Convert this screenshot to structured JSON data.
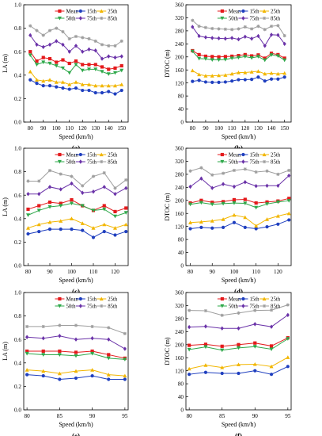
{
  "colors": {
    "Mean": "#e41a1c",
    "15th": "#1f3fbf",
    "25th": "#f2b600",
    "50th": "#2ea84a",
    "75th": "#6a32a8",
    "85th": "#9e9e9e"
  },
  "chart_data": [
    {
      "type": "line",
      "panel_label": "(a)",
      "xlabel": "Speed (km/h)",
      "ylabel": "LA (m)",
      "xlim": [
        75,
        155
      ],
      "ylim": [
        0.0,
        1.0
      ],
      "xticks": [
        80,
        90,
        100,
        110,
        120,
        130,
        140,
        150
      ],
      "yticks": [
        0.0,
        0.2,
        0.4,
        0.6,
        0.8,
        1.0
      ],
      "x": [
        80,
        85,
        90,
        95,
        100,
        105,
        110,
        115,
        120,
        125,
        130,
        135,
        140,
        145,
        150
      ],
      "series": [
        {
          "name": "Mean",
          "values": [
            0.6,
            0.52,
            0.55,
            0.54,
            0.51,
            0.53,
            0.5,
            0.52,
            0.49,
            0.49,
            0.49,
            0.47,
            0.45,
            0.46,
            0.48
          ]
        },
        {
          "name": "15th",
          "values": [
            0.36,
            0.33,
            0.31,
            0.31,
            0.3,
            0.29,
            0.28,
            0.29,
            0.27,
            0.27,
            0.25,
            0.25,
            0.26,
            0.24,
            0.27
          ]
        },
        {
          "name": "25th",
          "values": [
            0.43,
            0.36,
            0.35,
            0.36,
            0.34,
            0.34,
            0.32,
            0.34,
            0.32,
            0.32,
            0.31,
            0.31,
            0.31,
            0.31,
            0.32
          ]
        },
        {
          "name": "50th",
          "values": [
            0.57,
            0.49,
            0.51,
            0.5,
            0.48,
            0.46,
            0.42,
            0.49,
            0.44,
            0.45,
            0.45,
            0.43,
            0.41,
            0.42,
            0.44
          ]
        },
        {
          "name": "75th",
          "values": [
            0.74,
            0.66,
            0.64,
            0.66,
            0.69,
            0.66,
            0.6,
            0.65,
            0.6,
            0.62,
            0.61,
            0.54,
            0.56,
            0.55,
            0.56
          ]
        },
        {
          "name": "85th",
          "values": [
            0.82,
            0.78,
            0.74,
            0.78,
            0.8,
            0.77,
            0.71,
            0.73,
            0.72,
            0.71,
            0.69,
            0.66,
            0.65,
            0.65,
            0.69
          ]
        }
      ]
    },
    {
      "type": "line",
      "panel_label": "(b)",
      "xlabel": "Speed (km/h)",
      "ylabel": "DTOC (m)",
      "xlim": [
        75,
        155
      ],
      "ylim": [
        0,
        360
      ],
      "xticks": [
        80,
        90,
        100,
        110,
        120,
        130,
        140,
        150
      ],
      "yticks": [
        0,
        40,
        80,
        120,
        160,
        200,
        240,
        280,
        320,
        360
      ],
      "x": [
        80,
        85,
        90,
        95,
        100,
        105,
        110,
        115,
        120,
        125,
        130,
        135,
        140,
        145,
        150
      ],
      "series": [
        {
          "name": "Mean",
          "values": [
            219,
            207,
            202,
            201,
            200,
            201,
            202,
            204,
            207,
            203,
            206,
            196,
            211,
            207,
            196
          ]
        },
        {
          "name": "15th",
          "values": [
            125,
            128,
            123,
            122,
            122,
            123,
            126,
            130,
            130,
            131,
            138,
            126,
            132,
            132,
            138
          ]
        },
        {
          "name": "25th",
          "values": [
            158,
            146,
            142,
            142,
            143,
            144,
            148,
            152,
            152,
            154,
            156,
            148,
            150,
            148,
            150
          ]
        },
        {
          "name": "50th",
          "values": [
            217,
            195,
            194,
            191,
            191,
            192,
            196,
            198,
            201,
            197,
            201,
            190,
            206,
            203,
            190
          ]
        },
        {
          "name": "75th",
          "values": [
            292,
            264,
            260,
            258,
            257,
            256,
            258,
            254,
            262,
            256,
            264,
            234,
            268,
            267,
            240
          ]
        },
        {
          "name": "85th",
          "values": [
            312,
            294,
            290,
            287,
            286,
            285,
            284,
            286,
            292,
            286,
            294,
            284,
            294,
            296,
            265
          ]
        }
      ]
    },
    {
      "type": "line",
      "panel_label": "(c)",
      "xlabel": "Speed (km/h)",
      "ylabel": "LA (m)",
      "xlim": [
        78,
        126
      ],
      "ylim": [
        0.0,
        1.0
      ],
      "xticks": [
        80,
        90,
        100,
        110,
        120
      ],
      "yticks": [
        0.0,
        0.2,
        0.4,
        0.6,
        0.8,
        1.0
      ],
      "x": [
        80,
        85,
        90,
        95,
        100,
        105,
        110,
        115,
        120,
        125
      ],
      "series": [
        {
          "name": "Mean",
          "values": [
            0.48,
            0.51,
            0.54,
            0.53,
            0.56,
            0.51,
            0.47,
            0.51,
            0.46,
            0.49
          ]
        },
        {
          "name": "15th",
          "values": [
            0.27,
            0.29,
            0.31,
            0.31,
            0.31,
            0.3,
            0.24,
            0.29,
            0.26,
            0.29
          ]
        },
        {
          "name": "25th",
          "values": [
            0.32,
            0.35,
            0.37,
            0.38,
            0.4,
            0.36,
            0.32,
            0.35,
            0.32,
            0.35
          ]
        },
        {
          "name": "50th",
          "values": [
            0.43,
            0.47,
            0.5,
            0.51,
            0.53,
            0.51,
            0.47,
            0.48,
            0.42,
            0.45
          ]
        },
        {
          "name": "75th",
          "values": [
            0.61,
            0.61,
            0.67,
            0.65,
            0.7,
            0.62,
            0.63,
            0.67,
            0.61,
            0.66
          ]
        },
        {
          "name": "85th",
          "values": [
            0.72,
            0.72,
            0.81,
            0.78,
            0.76,
            0.68,
            0.76,
            0.79,
            0.66,
            0.73
          ]
        }
      ]
    },
    {
      "type": "line",
      "panel_label": "(d)",
      "xlabel": "Speed (km/h)",
      "ylabel": "DTOC (m)",
      "xlim": [
        78,
        126
      ],
      "ylim": [
        0,
        360
      ],
      "xticks": [
        80,
        90,
        100,
        110,
        120
      ],
      "yticks": [
        0,
        40,
        80,
        120,
        160,
        200,
        240,
        280,
        320,
        360
      ],
      "x": [
        80,
        85,
        90,
        95,
        100,
        105,
        110,
        115,
        120,
        125
      ],
      "series": [
        {
          "name": "Mean",
          "values": [
            192,
            200,
            194,
            196,
            202,
            203,
            192,
            195,
            198,
            206
          ]
        },
        {
          "name": "15th",
          "values": [
            113,
            117,
            115,
            117,
            132,
            117,
            113,
            119,
            127,
            140
          ]
        },
        {
          "name": "25th",
          "values": [
            132,
            134,
            137,
            142,
            155,
            148,
            122,
            142,
            152,
            160
          ]
        },
        {
          "name": "50th",
          "values": [
            188,
            193,
            188,
            190,
            192,
            191,
            178,
            189,
            195,
            199
          ]
        },
        {
          "name": "75th",
          "values": [
            242,
            267,
            238,
            250,
            242,
            256,
            244,
            245,
            245,
            276
          ]
        },
        {
          "name": "85th",
          "values": [
            290,
            300,
            278,
            283,
            292,
            296,
            287,
            290,
            280,
            292
          ]
        }
      ]
    },
    {
      "type": "line",
      "panel_label": "(e)",
      "xlabel": "Speed (km/h)",
      "ylabel": "LA (m)",
      "xlim": [
        79.5,
        95.5
      ],
      "ylim": [
        0.0,
        1.0
      ],
      "xticks": [
        80,
        85,
        90,
        95
      ],
      "yticks": [
        0.0,
        0.2,
        0.4,
        0.6,
        0.8,
        1.0
      ],
      "x": [
        80,
        82.5,
        85,
        87.5,
        90,
        92.5,
        95
      ],
      "series": [
        {
          "name": "Mean",
          "values": [
            0.5,
            0.5,
            0.5,
            0.49,
            0.5,
            0.47,
            0.44
          ]
        },
        {
          "name": "15th",
          "values": [
            0.3,
            0.29,
            0.26,
            0.27,
            0.29,
            0.26,
            0.26
          ]
        },
        {
          "name": "25th",
          "values": [
            0.34,
            0.33,
            0.31,
            0.33,
            0.34,
            0.3,
            0.29
          ]
        },
        {
          "name": "50th",
          "values": [
            0.48,
            0.47,
            0.47,
            0.46,
            0.48,
            0.44,
            0.43
          ]
        },
        {
          "name": "75th",
          "values": [
            0.62,
            0.61,
            0.63,
            0.6,
            0.61,
            0.6,
            0.52
          ]
        },
        {
          "name": "85th",
          "values": [
            0.71,
            0.71,
            0.72,
            0.72,
            0.71,
            0.7,
            0.65
          ]
        }
      ]
    },
    {
      "type": "line",
      "panel_label": "(f)",
      "xlabel": "Speed (km/h)",
      "ylabel": "DTOC (m)",
      "xlim": [
        79.5,
        95.5
      ],
      "ylim": [
        0,
        360
      ],
      "xticks": [
        80,
        85,
        90,
        95
      ],
      "yticks": [
        0,
        40,
        80,
        120,
        160,
        200,
        240,
        280,
        320,
        360
      ],
      "x": [
        80,
        82.5,
        85,
        87.5,
        90,
        92.5,
        95
      ],
      "series": [
        {
          "name": "Mean",
          "values": [
            198,
            201,
            195,
            200,
            205,
            196,
            221
          ]
        },
        {
          "name": "15th",
          "values": [
            109,
            115,
            112,
            112,
            120,
            109,
            133
          ]
        },
        {
          "name": "25th",
          "values": [
            126,
            137,
            130,
            139,
            140,
            133,
            161
          ]
        },
        {
          "name": "50th",
          "values": [
            185,
            193,
            183,
            190,
            194,
            186,
            218
          ]
        },
        {
          "name": "75th",
          "values": [
            254,
            256,
            250,
            250,
            263,
            255,
            291
          ]
        },
        {
          "name": "85th",
          "values": [
            305,
            304,
            290,
            297,
            305,
            306,
            322
          ]
        }
      ]
    }
  ]
}
